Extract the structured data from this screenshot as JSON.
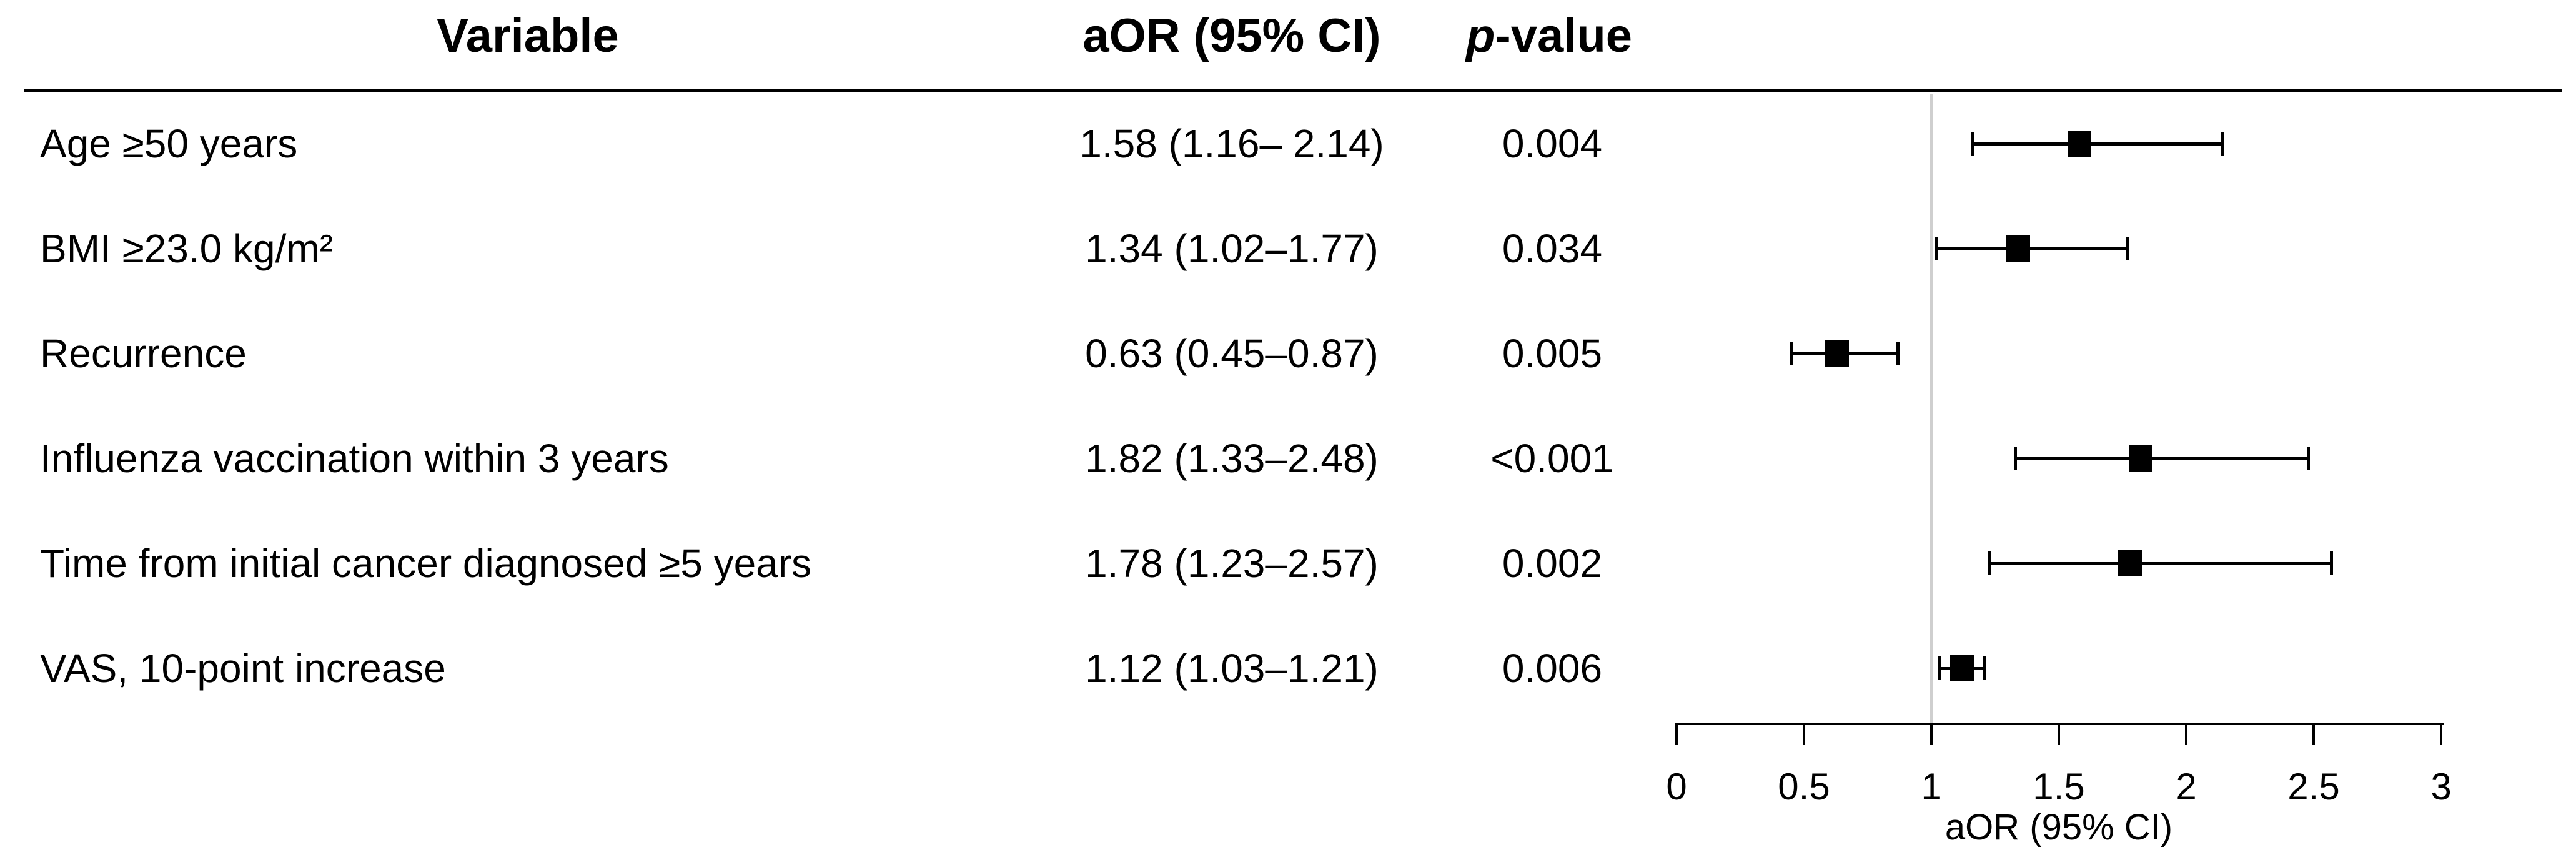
{
  "table": {
    "headers": {
      "variable": "Variable",
      "aor": "aOR (95% CI)",
      "p_italic": "p",
      "p_rest": "-value"
    },
    "rows": [
      {
        "variable": "Age ≥50 years",
        "aor": "1.58 (1.16– 2.14)",
        "p": "0.004"
      },
      {
        "variable": "BMI ≥23.0 kg/m²",
        "aor": "1.34 (1.02–1.77)",
        "p": "0.034"
      },
      {
        "variable": "Recurrence",
        "aor": "0.63 (0.45–0.87)",
        "p": "0.005"
      },
      {
        "variable": "Influenza vaccination within 3 years",
        "aor": "1.82 (1.33–2.48)",
        "p": "<0.001"
      },
      {
        "variable": "Time from initial cancer diagnosed ≥5 years",
        "aor": "1.78 (1.23–2.57)",
        "p": "0.002"
      },
      {
        "variable": "VAS, 10-point increase",
        "aor": "1.12 (1.03–1.21)",
        "p": "0.006"
      }
    ]
  },
  "chart_data": {
    "type": "scatter",
    "subtype": "forest-plot",
    "xlabel": "aOR (95% CI)",
    "xlim": [
      0,
      3
    ],
    "x_ticks": [
      0,
      0.5,
      1,
      1.5,
      2,
      2.5,
      3
    ],
    "x_tick_labels": [
      "0",
      "0.5",
      "1",
      "1.5",
      "2",
      "2.5",
      "3"
    ],
    "reference_line_x": 1,
    "grid": false,
    "legend": "none",
    "points": [
      {
        "label": "Age ≥50 years",
        "aor": 1.58,
        "ci_low": 1.16,
        "ci_high": 2.14,
        "p_value": "0.004"
      },
      {
        "label": "BMI ≥23.0 kg/m²",
        "aor": 1.34,
        "ci_low": 1.02,
        "ci_high": 1.77,
        "p_value": "0.034"
      },
      {
        "label": "Recurrence",
        "aor": 0.63,
        "ci_low": 0.45,
        "ci_high": 0.87,
        "p_value": "0.005"
      },
      {
        "label": "Influenza vaccination within 3 years",
        "aor": 1.82,
        "ci_low": 1.33,
        "ci_high": 2.48,
        "p_value": "<0.001"
      },
      {
        "label": "Time from initial cancer diagnosed ≥5 years",
        "aor": 1.78,
        "ci_low": 1.23,
        "ci_high": 2.57,
        "p_value": "0.002"
      },
      {
        "label": "VAS, 10-point increase",
        "aor": 1.12,
        "ci_low": 1.03,
        "ci_high": 1.21,
        "p_value": "0.006"
      }
    ]
  },
  "colors": {
    "text": "#000000",
    "marker": "#000000",
    "reference_line": "#cfcfcf"
  }
}
